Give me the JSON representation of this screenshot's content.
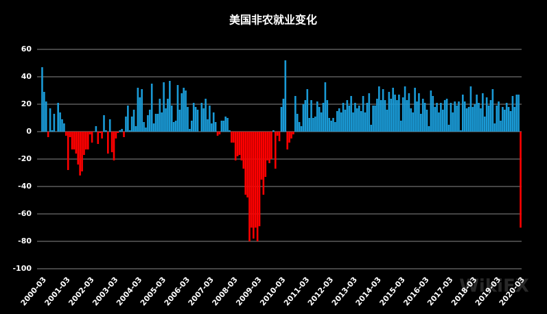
{
  "chart_data": {
    "type": "bar",
    "title": "美国非农就业变化",
    "watermark": "WikiFX",
    "categories": [
      "2000-03",
      null,
      null,
      null,
      null,
      null,
      null,
      null,
      null,
      null,
      null,
      null,
      "2001-03",
      null,
      null,
      null,
      null,
      null,
      null,
      null,
      null,
      null,
      null,
      null,
      "2002-03",
      null,
      null,
      null,
      null,
      null,
      null,
      null,
      null,
      null,
      null,
      null,
      "2003-03",
      null,
      null,
      null,
      null,
      null,
      null,
      null,
      null,
      null,
      null,
      null,
      "2004-03",
      null,
      null,
      null,
      null,
      null,
      null,
      null,
      null,
      null,
      null,
      null,
      "2005-03",
      null,
      null,
      null,
      null,
      null,
      null,
      null,
      null,
      null,
      null,
      null,
      "2006-03",
      null,
      null,
      null,
      null,
      null,
      null,
      null,
      null,
      null,
      null,
      null,
      "2007-03",
      null,
      null,
      null,
      null,
      null,
      null,
      null,
      null,
      null,
      null,
      null,
      "2008-03",
      null,
      null,
      null,
      null,
      null,
      null,
      null,
      null,
      null,
      null,
      null,
      "2009-03",
      null,
      null,
      null,
      null,
      null,
      null,
      null,
      null,
      null,
      null,
      null,
      "2010-03",
      null,
      null,
      null,
      null,
      null,
      null,
      null,
      null,
      null,
      null,
      null,
      "2011-03",
      null,
      null,
      null,
      null,
      null,
      null,
      null,
      null,
      null,
      null,
      null,
      "2012-03",
      null,
      null,
      null,
      null,
      null,
      null,
      null,
      null,
      null,
      null,
      null,
      "2013-03",
      null,
      null,
      null,
      null,
      null,
      null,
      null,
      null,
      null,
      null,
      null,
      "2014-03",
      null,
      null,
      null,
      null,
      null,
      null,
      null,
      null,
      null,
      null,
      null,
      "2015-03",
      null,
      null,
      null,
      null,
      null,
      null,
      null,
      null,
      null,
      null,
      null,
      "2016-03",
      null,
      null,
      null,
      null,
      null,
      null,
      null,
      null,
      null,
      null,
      null,
      "2017-03",
      null,
      null,
      null,
      null,
      null,
      null,
      null,
      null,
      null,
      null,
      null,
      "2018-03",
      null,
      null,
      null,
      null,
      null,
      null,
      null,
      null,
      null,
      null,
      null,
      "2019-03",
      null,
      null,
      null,
      null,
      null,
      null,
      null,
      null,
      null,
      null,
      null,
      "2020-03"
    ],
    "values": [
      47,
      29,
      22,
      -4,
      17,
      1,
      13,
      0,
      21,
      14,
      9,
      6,
      -3,
      -28,
      -4,
      -13,
      -13,
      -16,
      -24,
      -32,
      -29,
      -17,
      -13,
      -13,
      -2,
      -8,
      0,
      4,
      -9,
      -1,
      -5,
      12,
      1,
      -16,
      9,
      -15,
      -21,
      -5,
      -1,
      1,
      2,
      -4,
      11,
      19,
      1,
      11,
      16,
      4,
      32,
      25,
      31,
      7,
      3,
      12,
      16,
      35,
      6,
      13,
      13,
      24,
      14,
      36,
      17,
      24,
      37,
      19,
      7,
      8,
      34,
      16,
      28,
      32,
      30,
      18,
      2,
      8,
      21,
      18,
      16,
      0,
      21,
      17,
      24,
      9,
      19,
      6,
      14,
      7,
      -3,
      -2,
      8,
      8,
      11,
      10,
      1,
      -8,
      -8,
      -21,
      -18,
      -17,
      -21,
      -27,
      -46,
      -48,
      -80,
      -70,
      -78,
      -70,
      -80,
      -69,
      -35,
      -46,
      -33,
      -21,
      -23,
      -20,
      1,
      -27,
      -3,
      -7,
      18,
      24,
      52,
      -13,
      -8,
      -5,
      -2,
      26,
      13,
      7,
      4,
      20,
      23,
      31,
      10,
      23,
      10,
      11,
      22,
      18,
      14,
      21,
      36,
      23,
      10,
      8,
      10,
      7,
      15,
      17,
      14,
      21,
      16,
      23,
      19,
      26,
      14,
      21,
      17,
      19,
      15,
      26,
      14,
      21,
      28,
      5,
      19,
      19,
      24,
      33,
      23,
      31,
      23,
      16,
      29,
      24,
      32,
      27,
      23,
      27,
      8,
      25,
      33,
      23,
      28,
      17,
      14,
      32,
      22,
      28,
      13,
      24,
      21,
      16,
      4,
      30,
      26,
      18,
      21,
      14,
      21,
      16,
      23,
      24,
      5,
      21,
      14,
      22,
      19,
      22,
      1,
      27,
      22,
      17,
      18,
      33,
      18,
      20,
      27,
      21,
      17,
      28,
      11,
      25,
      19,
      23,
      31,
      6,
      19,
      22,
      8,
      18,
      16,
      21,
      18,
      15,
      26,
      18,
      27,
      27,
      -70
    ],
    "positive_color": "#1a9ad6",
    "negative_color": "#ff0000",
    "ylim": [
      -100,
      60
    ],
    "yticks": [
      -100,
      -80,
      -60,
      -40,
      -20,
      0,
      20,
      40,
      60
    ],
    "grid": true
  }
}
